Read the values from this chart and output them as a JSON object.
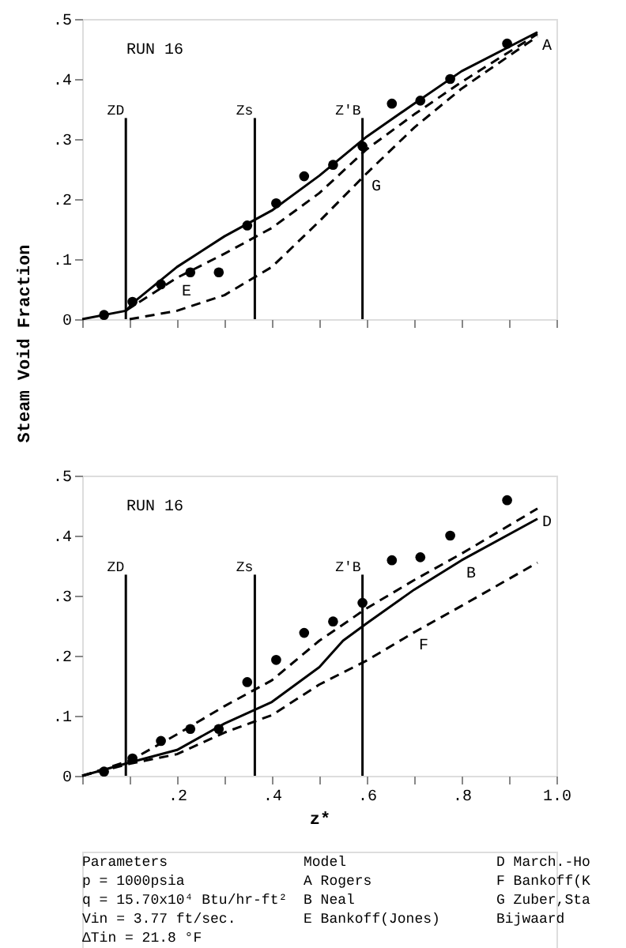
{
  "chart_data": [
    {
      "type": "line",
      "ylabel": "Steam Void Fraction",
      "xlim": [
        0,
        1.0
      ],
      "ylim": [
        0,
        0.5
      ],
      "xticks": [
        {
          "value": 0,
          "label": null
        },
        {
          "value": 0.1,
          "label": null
        },
        {
          "value": 0.2,
          "label": null
        },
        {
          "value": 0.3,
          "label": null
        },
        {
          "value": 0.4,
          "label": null
        },
        {
          "value": 0.5,
          "label": null
        },
        {
          "value": 0.6,
          "label": null
        },
        {
          "value": 0.7,
          "label": null
        },
        {
          "value": 0.8,
          "label": null
        },
        {
          "value": 0.9,
          "label": null
        },
        {
          "value": 1.0,
          "label": null
        }
      ],
      "yticks": [
        0,
        {
          "value": 0.1,
          "label": ".1"
        },
        {
          "value": 0.2,
          "label": ".2"
        },
        {
          "value": 0.3,
          "label": ".3"
        },
        {
          "value": 0.4,
          "label": ".4"
        },
        {
          "value": 0.5,
          "label": ".5"
        }
      ],
      "tick_labels": "y",
      "grid": false,
      "series": [
        {
          "line_style": "solid",
          "color": "#000000",
          "x": [
            0,
            0.092,
            0.11,
            0.2,
            0.3,
            0.4,
            0.5,
            0.6,
            0.7,
            0.8,
            0.96
          ],
          "values": [
            0,
            0.014,
            0.029,
            0.087,
            0.138,
            0.181,
            0.239,
            0.304,
            0.359,
            0.413,
            0.478
          ]
        },
        {
          "line_style": "dashed",
          "color": "#000000",
          "x": [
            0.092,
            0.2,
            0.3,
            0.4,
            0.5,
            0.6,
            0.7,
            0.8,
            0.96
          ],
          "values": [
            0.014,
            0.069,
            0.109,
            0.152,
            0.21,
            0.283,
            0.341,
            0.395,
            0.475
          ]
        },
        {
          "line_style": "dashed",
          "color": "#000000",
          "x": [
            0.1,
            0.2,
            0.3,
            0.4,
            0.5,
            0.6,
            0.7,
            0.8,
            0.96
          ],
          "values": [
            0.0,
            0.014,
            0.04,
            0.087,
            0.163,
            0.243,
            0.319,
            0.384,
            0.471
          ]
        },
        {
          "type": "scatter",
          "marker": "circle",
          "color": "#000000",
          "x": [
            0.046,
            0.106,
            0.166,
            0.228,
            0.288,
            0.348,
            0.409,
            0.468,
            0.529,
            0.591,
            0.653,
            0.713,
            0.776,
            0.896
          ],
          "values": [
            0.007,
            0.029,
            0.058,
            0.078,
            0.078,
            0.156,
            0.193,
            0.238,
            0.257,
            0.288,
            0.359,
            0.364,
            0.4,
            0.459
          ]
        }
      ],
      "ref_lines": [
        {
          "axis": "x",
          "value": 0.092,
          "label": "ZD"
        },
        {
          "axis": "x",
          "value": 0.364,
          "label": "Zs"
        },
        {
          "axis": "x",
          "value": 0.591,
          "label": "Z'B"
        }
      ],
      "annotations": [
        "RUN 16",
        {
          "text": "A",
          "x": 0.96,
          "y": 0.478
        },
        {
          "text": "E",
          "x": 0.2,
          "y": 0.069
        },
        {
          "text": "G",
          "x": 0.6,
          "y": 0.243
        }
      ]
    },
    {
      "type": "line",
      "xlabel": "z*",
      "xlim": [
        0,
        1.0
      ],
      "ylim": [
        0,
        0.5
      ],
      "xticks": [
        {
          "value": 0,
          "label": null
        },
        {
          "value": 0.1,
          "label": null
        },
        {
          "value": 0.2,
          "label": ".2"
        },
        {
          "value": 0.3,
          "label": null
        },
        {
          "value": 0.4,
          "label": ".4"
        },
        {
          "value": 0.5,
          "label": null
        },
        {
          "value": 0.6,
          "label": ".6"
        },
        {
          "value": 0.7,
          "label": null
        },
        {
          "value": 0.8,
          "label": ".8"
        },
        {
          "value": 0.9,
          "label": null
        },
        {
          "value": 1.0,
          "label": "1.0"
        }
      ],
      "yticks": [
        0,
        {
          "value": 0.1,
          "label": ".1"
        },
        {
          "value": 0.2,
          "label": ".2"
        },
        {
          "value": 0.3,
          "label": ".3"
        },
        {
          "value": 0.4,
          "label": ".4"
        },
        {
          "value": 0.5,
          "label": ".5"
        }
      ],
      "grid": false,
      "series": [
        {
          "line_style": "dashed",
          "color": "#000000",
          "x": [
            0,
            0.1,
            0.2,
            0.3,
            0.4,
            0.5,
            0.6,
            0.7,
            0.8,
            0.96
          ],
          "values": [
            0,
            0.025,
            0.069,
            0.116,
            0.159,
            0.225,
            0.279,
            0.326,
            0.37,
            0.445
          ]
        },
        {
          "line_style": "solid",
          "color": "#000000",
          "x": [
            0,
            0.1,
            0.2,
            0.3,
            0.4,
            0.5,
            0.55,
            0.6,
            0.7,
            0.8,
            0.96
          ],
          "values": [
            0,
            0.022,
            0.043,
            0.087,
            0.123,
            0.181,
            0.225,
            0.254,
            0.31,
            0.359,
            0.428
          ]
        },
        {
          "line_style": "dashed",
          "color": "#000000",
          "x": [
            0,
            0.1,
            0.2,
            0.3,
            0.4,
            0.5,
            0.6,
            0.7,
            0.8,
            0.96
          ],
          "values": [
            0,
            0.02,
            0.036,
            0.072,
            0.101,
            0.152,
            0.192,
            0.239,
            0.283,
            0.355
          ]
        },
        {
          "type": "scatter",
          "marker": "circle",
          "color": "#000000",
          "x": [
            0.046,
            0.106,
            0.166,
            0.228,
            0.288,
            0.348,
            0.409,
            0.468,
            0.529,
            0.591,
            0.653,
            0.713,
            0.776,
            0.896
          ],
          "values": [
            0.007,
            0.029,
            0.058,
            0.078,
            0.078,
            0.156,
            0.193,
            0.238,
            0.257,
            0.288,
            0.359,
            0.364,
            0.4,
            0.459
          ]
        }
      ],
      "ref_lines": [
        {
          "axis": "x",
          "value": 0.092,
          "label": "ZD"
        },
        {
          "axis": "x",
          "value": 0.364,
          "label": "Zs"
        },
        {
          "axis": "x",
          "value": 0.591,
          "label": "Z'B"
        }
      ],
      "annotations": [
        "RUN 16",
        {
          "text": "D",
          "x": 0.96,
          "y": 0.445
        },
        {
          "text": "B",
          "x": 0.8,
          "y": 0.359
        },
        {
          "text": "F",
          "x": 0.7,
          "y": 0.239
        },
        "Parameters",
        "p = 1000psia",
        "q = 15.70x10⁴ Btu/hr-ft²",
        "Vin = 3.77 ft/sec.",
        "ΔTin = 21.8 °F",
        "Model",
        "A  Rogers",
        "B  Neal",
        "E  Bankoff(Jones)",
        "D March.-Ho",
        "F Bankoff(K",
        "G Zuber,Sta",
        "  Bijwaard"
      ]
    }
  ]
}
